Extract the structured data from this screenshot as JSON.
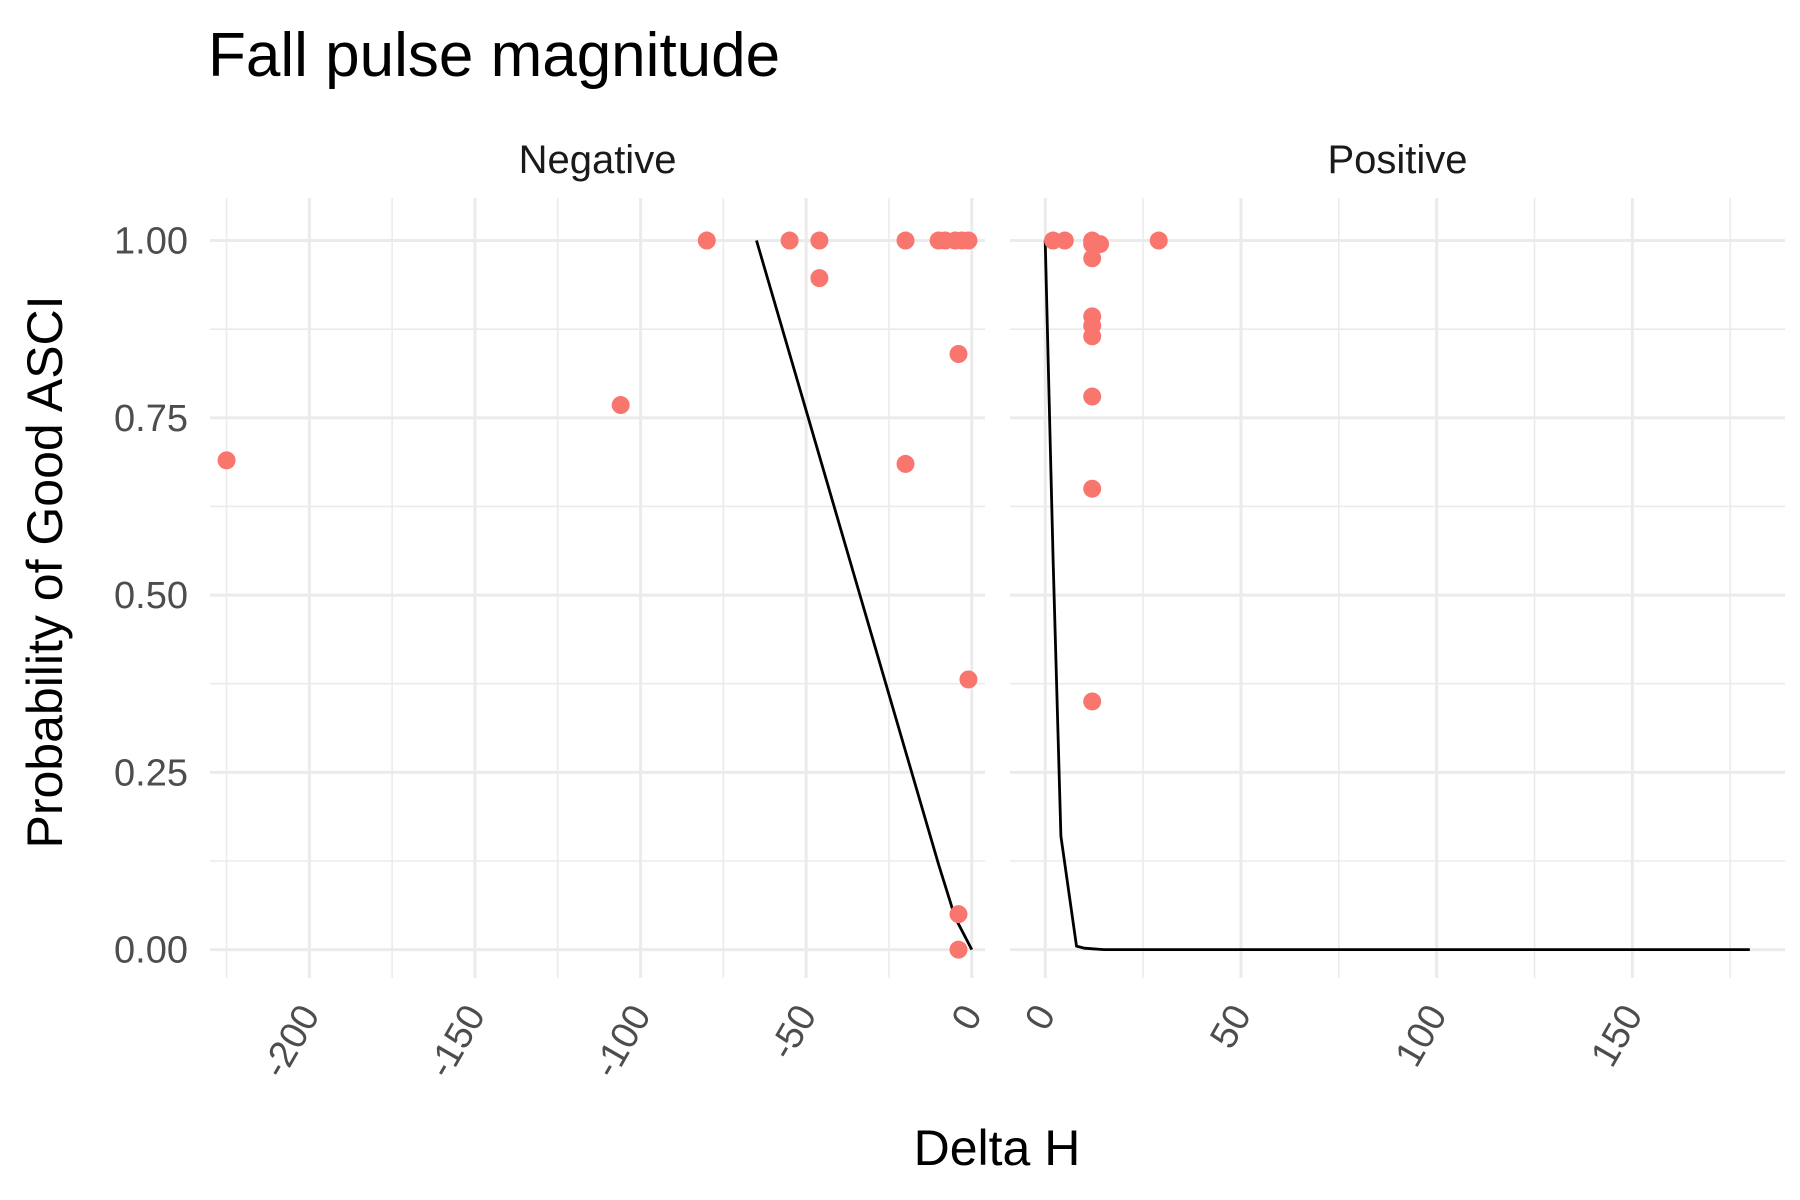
{
  "chart_data": {
    "type": "scatter",
    "title": "Fall pulse magnitude",
    "xlabel": "Delta H",
    "ylabel": "Probability of Good ASCI",
    "ylim": [
      -0.04,
      1.06
    ],
    "yticks": [
      0,
      0.25,
      0.5,
      0.75,
      1
    ],
    "ytick_labels": [
      "0.00",
      "0.25",
      "0.50",
      "0.75",
      "1.00"
    ],
    "point_color": "#F8766D",
    "line_color": "#000000",
    "grid": true,
    "legend": "none",
    "panels": [
      {
        "name": "Negative",
        "xlim": [
          -230,
          4
        ],
        "xticks": [
          -200,
          -150,
          -100,
          -50,
          0
        ],
        "xtick_labels": [
          "-200",
          "-150",
          "-100",
          "-50",
          "0"
        ],
        "points": [
          {
            "x": -225,
            "y": 0.69
          },
          {
            "x": -106,
            "y": 0.768
          },
          {
            "x": -80,
            "y": 1.0
          },
          {
            "x": -55,
            "y": 1.0
          },
          {
            "x": -46,
            "y": 1.0
          },
          {
            "x": -46,
            "y": 0.947
          },
          {
            "x": -20,
            "y": 1.0
          },
          {
            "x": -20,
            "y": 0.685
          },
          {
            "x": -10,
            "y": 1.0
          },
          {
            "x": -8,
            "y": 1.0
          },
          {
            "x": -5,
            "y": 1.0
          },
          {
            "x": -3,
            "y": 1.0
          },
          {
            "x": -1,
            "y": 1.0
          },
          {
            "x": -4,
            "y": 0.84
          },
          {
            "x": -1,
            "y": 0.381
          },
          {
            "x": -4,
            "y": 0.05
          },
          {
            "x": -4,
            "y": 0.0
          }
        ],
        "fit_line": {
          "x": [
            -65,
            -50,
            -35,
            -20,
            -10,
            -5,
            0
          ],
          "y": [
            1.0,
            0.76,
            0.52,
            0.28,
            0.12,
            0.045,
            0.0
          ]
        }
      },
      {
        "name": "Positive",
        "xlim": [
          -9,
          189
        ],
        "xticks": [
          0,
          50,
          100,
          150
        ],
        "xtick_labels": [
          "0",
          "50",
          "100",
          "150"
        ],
        "points": [
          {
            "x": 2,
            "y": 1.0
          },
          {
            "x": 5,
            "y": 1.0
          },
          {
            "x": 12,
            "y": 1.0
          },
          {
            "x": 12,
            "y": 0.995
          },
          {
            "x": 14,
            "y": 0.995
          },
          {
            "x": 12,
            "y": 0.975
          },
          {
            "x": 12,
            "y": 0.893
          },
          {
            "x": 12,
            "y": 0.88
          },
          {
            "x": 12,
            "y": 0.865
          },
          {
            "x": 12,
            "y": 0.78
          },
          {
            "x": 12,
            "y": 0.65
          },
          {
            "x": 12,
            "y": 0.35
          },
          {
            "x": 29,
            "y": 1.0
          }
        ],
        "fit_line": {
          "x": [
            0,
            2,
            4,
            8,
            10,
            15,
            50,
            100,
            150,
            180
          ],
          "y": [
            1.0,
            0.55,
            0.16,
            0.005,
            0.002,
            0.0,
            0.0,
            0.0,
            0.0,
            0.0
          ]
        }
      }
    ]
  }
}
